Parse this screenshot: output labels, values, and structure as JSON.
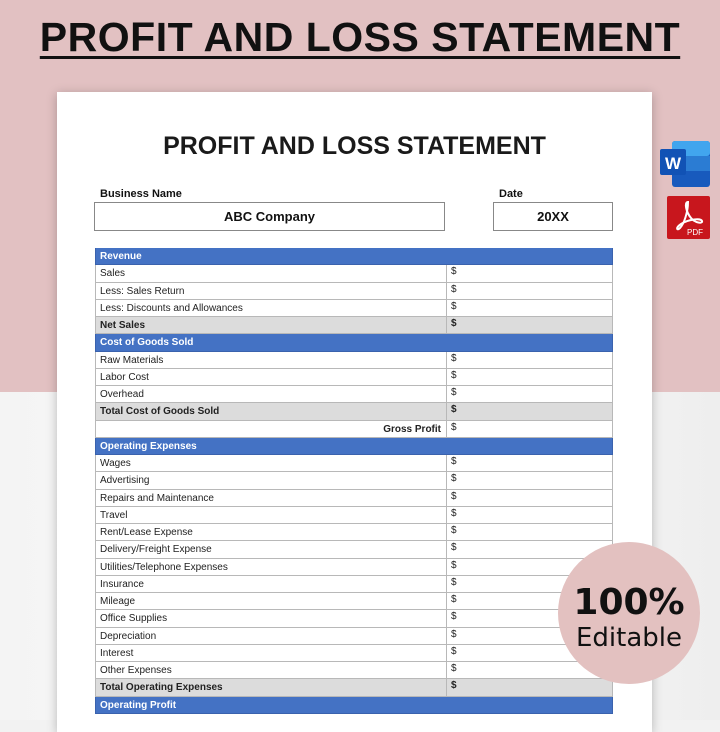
{
  "banner_title": "PROFIT AND LOSS STATEMENT",
  "document": {
    "title": "PROFIT AND LOSS STATEMENT",
    "business_name_label": "Business Name",
    "business_name_value": "ABC Company",
    "date_label": "Date",
    "date_value": "20XX"
  },
  "rows": [
    {
      "label": "Revenue",
      "type": "header"
    },
    {
      "label": "Sales",
      "value": "$"
    },
    {
      "label": "Less: Sales Return",
      "value": "$"
    },
    {
      "label": "Less: Discounts and Allowances",
      "value": "$"
    },
    {
      "label": "Net Sales",
      "value": "$",
      "type": "total"
    },
    {
      "label": "Cost of Goods Sold",
      "type": "header"
    },
    {
      "label": "Raw Materials",
      "value": "$"
    },
    {
      "label": "Labor Cost",
      "value": "$"
    },
    {
      "label": "Overhead",
      "value": "$"
    },
    {
      "label": "Total Cost of Goods Sold",
      "value": "$",
      "type": "total"
    },
    {
      "label": "Gross Profit",
      "value": "$",
      "type": "gp"
    },
    {
      "label": "Operating Expenses",
      "type": "header"
    },
    {
      "label": "Wages",
      "value": "$"
    },
    {
      "label": "Advertising",
      "value": "$"
    },
    {
      "label": "Repairs and Maintenance",
      "value": "$"
    },
    {
      "label": "Travel",
      "value": "$"
    },
    {
      "label": "Rent/Lease Expense",
      "value": "$"
    },
    {
      "label": "Delivery/Freight Expense",
      "value": "$"
    },
    {
      "label": "Utilities/Telephone Expenses",
      "value": "$"
    },
    {
      "label": "Insurance",
      "value": "$"
    },
    {
      "label": "Mileage",
      "value": "$"
    },
    {
      "label": "Office Supplies",
      "value": "$"
    },
    {
      "label": "Depreciation",
      "value": "$"
    },
    {
      "label": "Interest",
      "value": "$"
    },
    {
      "label": "Other Expenses",
      "value": "$"
    },
    {
      "label": "Total Operating Expenses",
      "value": "$",
      "type": "total"
    },
    {
      "label": "Operating Profit",
      "type": "header"
    }
  ],
  "icons": {
    "word": "W",
    "pdf": "PDF"
  },
  "badge": {
    "line1": "100%",
    "line2": "Editable"
  },
  "colors": {
    "accent": "#4472c4",
    "background": "#e2c1c2",
    "total_row": "#dcdcdc"
  }
}
